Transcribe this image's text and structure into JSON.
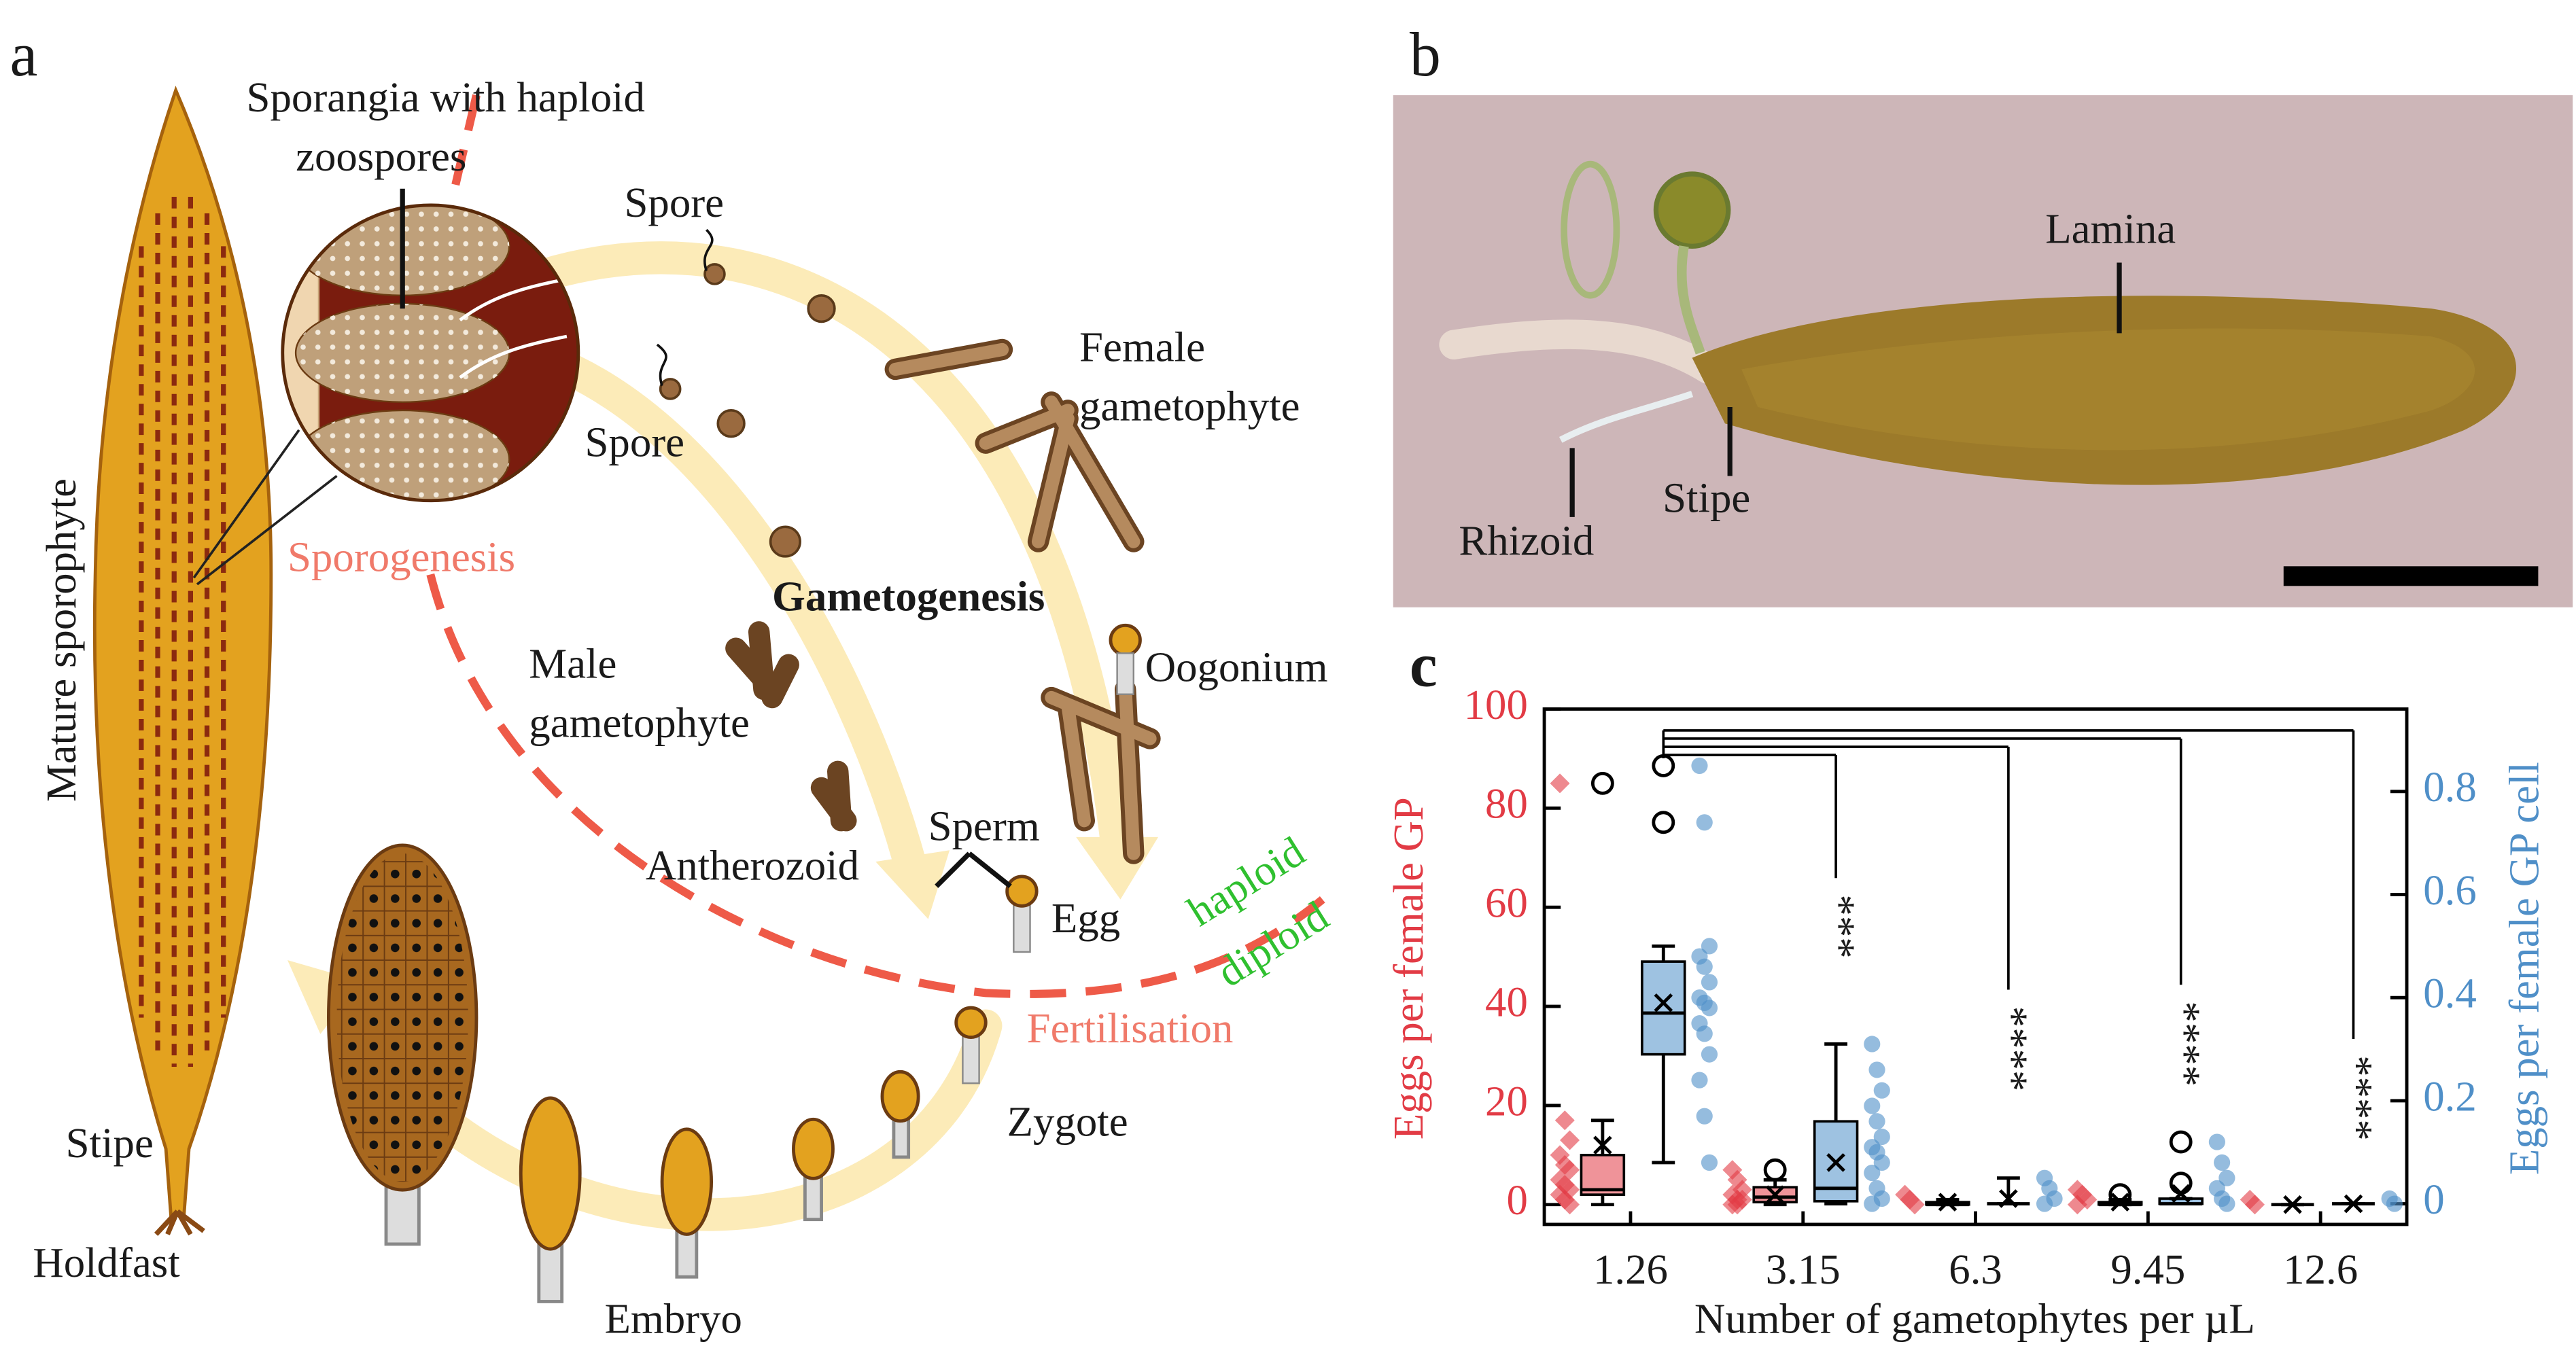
{
  "panel_a": {
    "label": "a",
    "sporangia": [
      "Sporangia with haploid",
      "zoospores"
    ],
    "spore_1": "Spore",
    "spore_2": "Spore",
    "female_gametophyte": [
      "Female",
      "gametophyte"
    ],
    "mature_sporophyte": "Mature sporophyte",
    "sporogenesis": "Sporogenesis",
    "gametogenesis": "Gametogenesis",
    "male_gametophyte": [
      "Male",
      "gametophyte"
    ],
    "oogonium": "Oogonium",
    "sperm": "Sperm",
    "antherozoid": "Antherozoid",
    "egg": "Egg",
    "haploid": "haploid",
    "diploid": "diploid",
    "fertilisation": "Fertilisation",
    "zygote": "Zygote",
    "stipe": "Stipe",
    "holdfast": "Holdfast",
    "embryo": "Embryo"
  },
  "panel_b": {
    "label": "b",
    "lamina": "Lamina",
    "stipe": "Stipe",
    "rhizoid": "Rhizoid"
  },
  "chart_data": {
    "type": "box",
    "panel_label": "c",
    "xlabel": "Number of gametophytes per µL",
    "ylabel": "Eggs per female GP",
    "y2label": "Eggs per female GP cell",
    "categories": [
      "1.26",
      "3.15",
      "6.3",
      "9.45",
      "12.6"
    ],
    "ylim": [
      -4,
      100
    ],
    "yticks": [
      0,
      20,
      40,
      60,
      80,
      100
    ],
    "y2lim": [
      -0.04,
      0.96
    ],
    "y2ticks": [
      0,
      0.2,
      0.4,
      0.6,
      0.8
    ],
    "series": [
      {
        "axis": "y",
        "color": "#e23b45",
        "marker": "diamond",
        "boxes": [
          {
            "whislo": 0,
            "q1": 2,
            "med": 3,
            "q3": 10,
            "whishi": 17,
            "mean": 12,
            "fliers": [
              85
            ]
          },
          {
            "whislo": 0,
            "q1": 0.5,
            "med": 1.5,
            "q3": 3.5,
            "whishi": 5,
            "mean": 2,
            "fliers": [
              7
            ]
          },
          {
            "whislo": 0,
            "q1": 0,
            "med": 0,
            "q3": 0.5,
            "whishi": 1,
            "mean": 0.5,
            "fliers": []
          },
          {
            "whislo": 0,
            "q1": 0,
            "med": 0,
            "q3": 0.5,
            "whishi": 1,
            "mean": 0.5,
            "fliers": [
              2
            ]
          },
          {
            "whislo": 0,
            "q1": 0,
            "med": 0,
            "q3": 0,
            "whishi": 0,
            "mean": 0,
            "fliers": []
          }
        ],
        "points": [
          [
            85,
            17,
            13,
            10,
            8,
            7,
            5,
            4,
            3,
            2,
            1,
            0
          ],
          [
            7,
            5,
            3,
            2,
            1,
            1,
            0,
            0
          ],
          [
            2,
            1,
            0
          ],
          [
            3,
            2,
            1,
            0
          ],
          [
            1,
            0
          ]
        ]
      },
      {
        "axis": "y2",
        "color": "#4f8fc8",
        "marker": "circle",
        "boxes": [
          {
            "whislo": 0.08,
            "q1": 0.29,
            "med": 0.37,
            "q3": 0.47,
            "whishi": 0.5,
            "mean": 0.39,
            "fliers": [
              0.85,
              0.74
            ]
          },
          {
            "whislo": 0,
            "q1": 0.005,
            "med": 0.03,
            "q3": 0.16,
            "whishi": 0.31,
            "mean": 0.08,
            "fliers": []
          },
          {
            "whislo": 0,
            "q1": 0,
            "med": 0,
            "q3": 0,
            "whishi": 0.05,
            "mean": 0.01,
            "fliers": []
          },
          {
            "whislo": 0,
            "q1": 0,
            "med": 0,
            "q3": 0.01,
            "whishi": 0.01,
            "mean": 0.02,
            "fliers": [
              0.12,
              0.04
            ]
          },
          {
            "whislo": 0,
            "q1": 0,
            "med": 0,
            "q3": 0,
            "whishi": 0,
            "mean": 0,
            "fliers": []
          }
        ],
        "points": [
          [
            0.85,
            0.74,
            0.5,
            0.48,
            0.46,
            0.43,
            0.4,
            0.39,
            0.38,
            0.35,
            0.33,
            0.29,
            0.24,
            0.17,
            0.08
          ],
          [
            0.31,
            0.26,
            0.22,
            0.19,
            0.16,
            0.13,
            0.11,
            0.1,
            0.08,
            0.06,
            0.03,
            0.01,
            0
          ],
          [
            0.05,
            0.03,
            0.01,
            0
          ],
          [
            0.12,
            0.08,
            0.05,
            0.03,
            0.01,
            0
          ],
          [
            0.01,
            0
          ]
        ]
      }
    ],
    "significance": [
      {
        "label": "***",
        "category": "3.15"
      },
      {
        "label": "****",
        "category": "6.3"
      },
      {
        "label": "****",
        "category": "9.45"
      },
      {
        "label": "****",
        "category": "12.6"
      }
    ]
  }
}
